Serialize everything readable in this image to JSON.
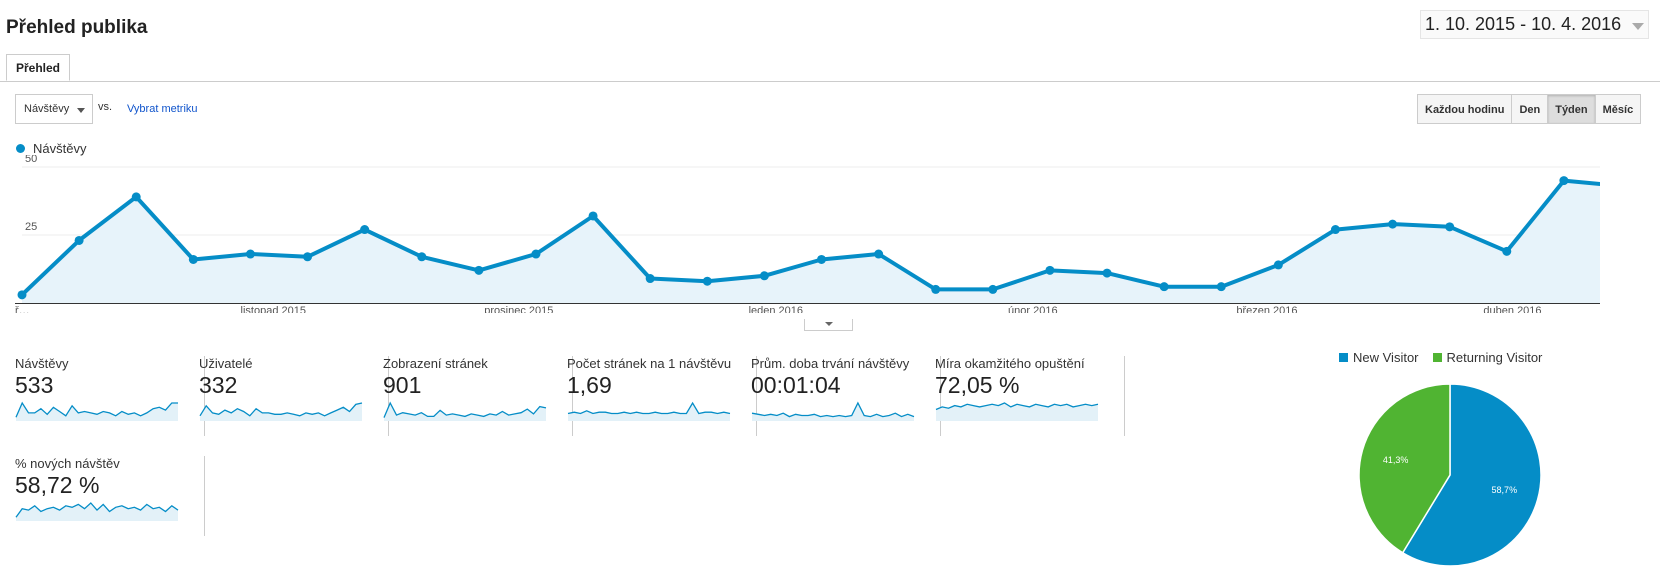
{
  "header": {
    "title": "Přehled publika",
    "date_range": "1. 10. 2015 - 10. 4. 2016"
  },
  "tabs": [
    {
      "label": "Přehled"
    }
  ],
  "toolbar": {
    "metric_select": "Návštěvy",
    "vs_label": "vs.",
    "pick_metric": "Vybrat metriku"
  },
  "granularity": [
    {
      "label": "Každou hodinu"
    },
    {
      "label": "Den"
    },
    {
      "label": "Týden",
      "active": true
    },
    {
      "label": "Měsíc"
    }
  ],
  "chart_data": [
    {
      "type": "area",
      "title": "Návštěvy",
      "series": [
        {
          "name": "Návštěvy",
          "color": "#058dc7",
          "values": [
            3,
            23,
            39,
            16,
            18,
            17,
            27,
            17,
            12,
            18,
            32,
            9,
            8,
            10,
            16,
            18,
            5,
            5,
            12,
            11,
            6,
            6,
            14,
            27,
            29,
            28,
            19,
            45,
            43
          ]
        }
      ],
      "y_ticks": [
        25,
        50
      ],
      "ylim": [
        0,
        50
      ],
      "x_tick_labels": [
        {
          "label": "ř…",
          "index": 0
        },
        {
          "label": "listopad 2015",
          "index": 4.4
        },
        {
          "label": "prosinec 2015",
          "index": 8.7
        },
        {
          "label": "leden 2016",
          "index": 13.2
        },
        {
          "label": "únor 2016",
          "index": 17.7
        },
        {
          "label": "březen 2016",
          "index": 21.8
        },
        {
          "label": "duben 2016",
          "index": 26.1
        }
      ]
    },
    {
      "type": "pie",
      "series": [
        {
          "name": "New Visitor",
          "value": 58.7,
          "label": "58,7%",
          "color": "#058dc7"
        },
        {
          "name": "Returning Visitor",
          "value": 41.3,
          "label": "41,3%",
          "color": "#50b432"
        }
      ]
    }
  ],
  "stats": [
    {
      "label": "Návštěvy",
      "value": "533",
      "spark": [
        2,
        12,
        5,
        5,
        8,
        4,
        9,
        6,
        3,
        10,
        5,
        6,
        5,
        4,
        6,
        5,
        3,
        6,
        4,
        5,
        3,
        5,
        8,
        9,
        7,
        12,
        12
      ]
    },
    {
      "label": "Uživatelé",
      "value": "332",
      "spark": [
        3,
        10,
        5,
        4,
        7,
        5,
        8,
        6,
        3,
        8,
        5,
        5,
        4,
        4,
        5,
        4,
        3,
        5,
        4,
        5,
        3,
        5,
        7,
        9,
        6,
        11,
        12
      ]
    },
    {
      "label": "Zobrazení stránek",
      "value": "901",
      "spark": [
        2,
        14,
        4,
        6,
        5,
        4,
        6,
        3,
        3,
        8,
        4,
        5,
        4,
        3,
        5,
        4,
        3,
        5,
        4,
        7,
        4,
        5,
        6,
        9,
        5,
        11,
        10
      ]
    },
    {
      "label": "Počet stránek na 1 návštěvu",
      "value": "1,69",
      "spark": [
        5,
        6,
        5,
        7,
        5,
        6,
        6,
        5,
        5,
        6,
        5,
        6,
        5,
        5,
        6,
        5,
        5,
        6,
        5,
        5,
        13,
        5,
        6,
        6,
        5,
        6,
        5
      ]
    },
    {
      "label": "Prům. doba trvání návštěvy",
      "value": "00:01:04",
      "spark": [
        6,
        5,
        4,
        5,
        4,
        6,
        3,
        5,
        4,
        4,
        5,
        3,
        4,
        3,
        4,
        3,
        4,
        15,
        4,
        3,
        5,
        3,
        4,
        6,
        3,
        5,
        3
      ]
    },
    {
      "label": "Míra okamžitého opuštění",
      "value": "72,05 %",
      "spark": [
        8,
        10,
        9,
        11,
        10,
        12,
        11,
        10,
        11,
        12,
        11,
        13,
        10,
        12,
        11,
        10,
        12,
        11,
        10,
        12,
        11,
        12,
        10,
        11,
        12,
        11,
        12
      ]
    },
    {
      "label": "% nových návštěv",
      "value": "58,72 %",
      "spark": [
        2,
        8,
        7,
        10,
        6,
        8,
        9,
        7,
        10,
        9,
        11,
        8,
        12,
        7,
        11,
        6,
        9,
        10,
        8,
        9,
        7,
        11,
        8,
        9,
        6,
        10,
        7
      ]
    }
  ]
}
